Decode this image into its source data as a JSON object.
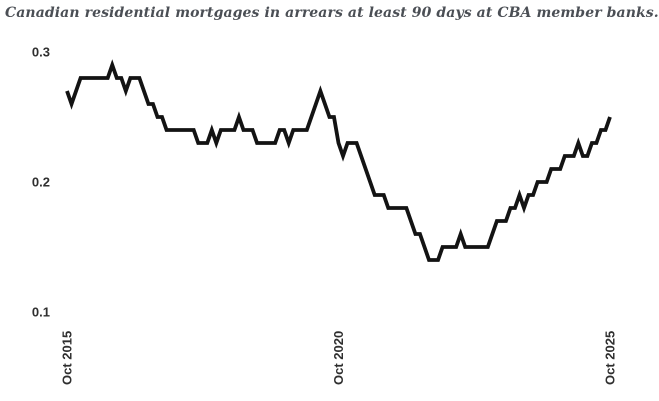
{
  "page": {
    "background": "#ffffff"
  },
  "chart_data": {
    "type": "line",
    "title": "Canadian residential mortgages in arrears at least 90 days at CBA member banks.",
    "x_unit": "month",
    "x_start": "Oct 2015",
    "x_end": "Oct 2025",
    "n_points": 121,
    "values": [
      0.27,
      0.26,
      0.27,
      0.28,
      0.28,
      0.28,
      0.28,
      0.28,
      0.28,
      0.28,
      0.29,
      0.28,
      0.28,
      0.27,
      0.28,
      0.28,
      0.28,
      0.27,
      0.26,
      0.26,
      0.25,
      0.25,
      0.24,
      0.24,
      0.24,
      0.24,
      0.24,
      0.24,
      0.24,
      0.23,
      0.23,
      0.23,
      0.24,
      0.23,
      0.24,
      0.24,
      0.24,
      0.24,
      0.25,
      0.24,
      0.24,
      0.24,
      0.23,
      0.23,
      0.23,
      0.23,
      0.23,
      0.24,
      0.24,
      0.23,
      0.24,
      0.24,
      0.24,
      0.24,
      0.25,
      0.26,
      0.27,
      0.26,
      0.25,
      0.25,
      0.23,
      0.22,
      0.23,
      0.23,
      0.23,
      0.22,
      0.21,
      0.2,
      0.19,
      0.19,
      0.19,
      0.18,
      0.18,
      0.18,
      0.18,
      0.18,
      0.17,
      0.16,
      0.16,
      0.15,
      0.14,
      0.14,
      0.14,
      0.15,
      0.15,
      0.15,
      0.15,
      0.16,
      0.15,
      0.15,
      0.15,
      0.15,
      0.15,
      0.15,
      0.16,
      0.17,
      0.17,
      0.17,
      0.18,
      0.18,
      0.19,
      0.18,
      0.19,
      0.19,
      0.2,
      0.2,
      0.2,
      0.21,
      0.21,
      0.21,
      0.22,
      0.22,
      0.22,
      0.23,
      0.22,
      0.22,
      0.23,
      0.23,
      0.24,
      0.24,
      0.25
    ],
    "ylim": [
      0.09,
      0.31
    ],
    "yticks": [
      {
        "value": 0.3,
        "label": "0.3"
      },
      {
        "value": 0.2,
        "label": "0.2"
      },
      {
        "value": 0.1,
        "label": "0.1"
      }
    ],
    "xticks": [
      {
        "index": 0,
        "label": "Oct 2015"
      },
      {
        "index": 60,
        "label": "Oct 2020"
      },
      {
        "index": 120,
        "label": "Oct 2025"
      }
    ],
    "grid": false,
    "legend": false,
    "line_color": "#131313",
    "line_width": 3.8,
    "tick_color": "#2f2f2f",
    "title_color": "#4b4f55"
  }
}
